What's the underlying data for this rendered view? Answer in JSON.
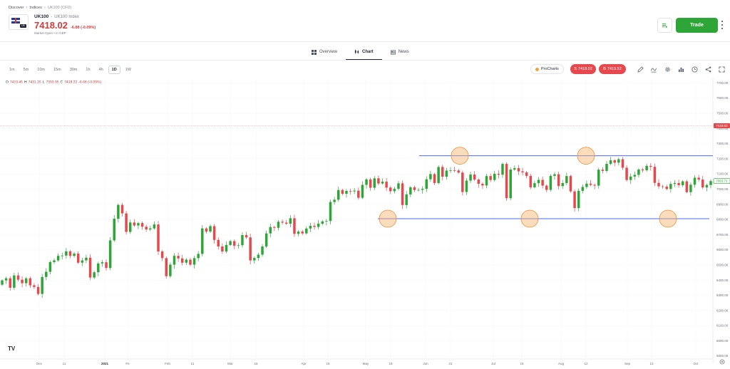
{
  "breadcrumb": [
    "Discover",
    "Indices",
    "UK100 (CFD)"
  ],
  "instrument": {
    "flag_tag": "UK",
    "symbol": "UK100",
    "separator": "-",
    "full_name": "UK100 Index",
    "price": "7418.02",
    "change": "-6.88 (-0.09%)",
    "market_status": "Market Open  •  In GBP"
  },
  "actions": {
    "trade_label": "Trade"
  },
  "tabs": [
    {
      "label": "Overview",
      "icon": "grid-icon"
    },
    {
      "label": "Chart",
      "icon": "candles-icon"
    },
    {
      "label": "News",
      "icon": "newspaper-icon"
    }
  ],
  "active_tab": "Chart",
  "intervals": [
    "1m",
    "5m",
    "10m",
    "15m",
    "30m",
    "1h",
    "4h",
    "1D",
    "1W"
  ],
  "active_interval": "1D",
  "toolbar": {
    "prochart_label": "ProCharts",
    "sell_label": "S",
    "sell_price": "7418.02",
    "buy_label": "B",
    "buy_price": "7419.52",
    "icons": [
      "pencil-icon",
      "indicators-icon",
      "settings-icon",
      "chart-type-icon",
      "compare-icon",
      "share-icon",
      "fullscreen-icon"
    ]
  },
  "ohlc": {
    "O_label": "O",
    "O": "7419.45",
    "H_label": "H",
    "H": "7431.26",
    "L_label": "L",
    "L": "7393.95",
    "C_label": "C",
    "C": "7418.22",
    "change": "-6.68 (-0.09%)"
  },
  "colors": {
    "up": "#2ea637",
    "down": "#e5484d",
    "line": "#4a6cf7",
    "highlight": "#f6b46a",
    "price_line": "#e5484d"
  },
  "chart_data": {
    "type": "candlestick",
    "y_axis_ticks": [
      "7700.00",
      "7600.00",
      "7500.00",
      "7400.00",
      "7300.00",
      "7200.00",
      "7100.00",
      "7000.00",
      "6900.00",
      "6800.00",
      "6700.00",
      "6600.00",
      "6500.00",
      "6400.00",
      "6300.00",
      "6200.00",
      "6100.00",
      "6000.00",
      "5900.00"
    ],
    "ylim": [
      5880,
      7730
    ],
    "current_price_label": "7418.02",
    "last_candle_label": "7053.71",
    "x_axis_ticks": [
      "Dec",
      "11",
      "2021",
      "Fe",
      "Feb",
      "11",
      "Mar",
      "15",
      "Apr",
      "15",
      "May",
      "16",
      "Jun",
      "21",
      "Jul",
      "15",
      "Aug",
      "12",
      "Sep",
      "13",
      "Oct"
    ],
    "resistance_level": 7220,
    "support_level": 6805,
    "closes": [
      6398,
      6412,
      6350,
      6431,
      6403,
      6380,
      6412,
      6366,
      6355,
      6309,
      6421,
      6455,
      6519,
      6530,
      6560,
      6562,
      6590,
      6560,
      6575,
      6515,
      6530,
      6548,
      6417,
      6452,
      6510,
      6518,
      6480,
      6662,
      6805,
      6896,
      6840,
      6718,
      6780,
      6760,
      6776,
      6752,
      6734,
      6741,
      6767,
      6589,
      6545,
      6426,
      6502,
      6560,
      6543,
      6515,
      6535,
      6502,
      6545,
      6573,
      6741,
      6720,
      6756,
      6665,
      6622,
      6589,
      6632,
      6657,
      6627,
      6630,
      6697,
      6682,
      6530,
      6546,
      6568,
      6622,
      6708,
      6750,
      6745,
      6785,
      6779,
      6772,
      6808,
      6705,
      6720,
      6708,
      6740,
      6758,
      6751,
      6772,
      6787,
      6790,
      6915,
      6930,
      6994,
      6969,
      6988,
      6985,
      6990,
      6943,
      7028,
      7064,
      7009,
      7071,
      7037,
      7049,
      7010,
      6986,
      7002,
      7038,
      6895,
      6965,
      7012,
      6994,
      6995,
      7002,
      7065,
      7099,
      7040,
      7146,
      7082,
      7122,
      7124,
      7123,
      7109,
      6981,
      7056,
      7096,
      7063,
      7035,
      7024,
      7086,
      7060,
      7101,
      7095,
      7166,
      6940,
      7129,
      7138,
      7117,
      7110,
      7087,
      7012,
      7039,
      7061,
      7023,
      6995,
      7087,
      7098,
      7020,
      7040,
      7086,
      6985,
      6875,
      6989,
      7014,
      7036,
      7028,
      7023,
      7128,
      7120,
      7166,
      7190,
      7174,
      7197,
      7141,
      7060,
      7083,
      7094,
      7129,
      7124,
      7153,
      7147,
      7041,
      7018,
      7016,
      7001,
      7034,
      7040,
      7026,
      7051,
      6980,
      7029,
      7075,
      7063,
      7011,
      7027,
      7053
    ]
  }
}
